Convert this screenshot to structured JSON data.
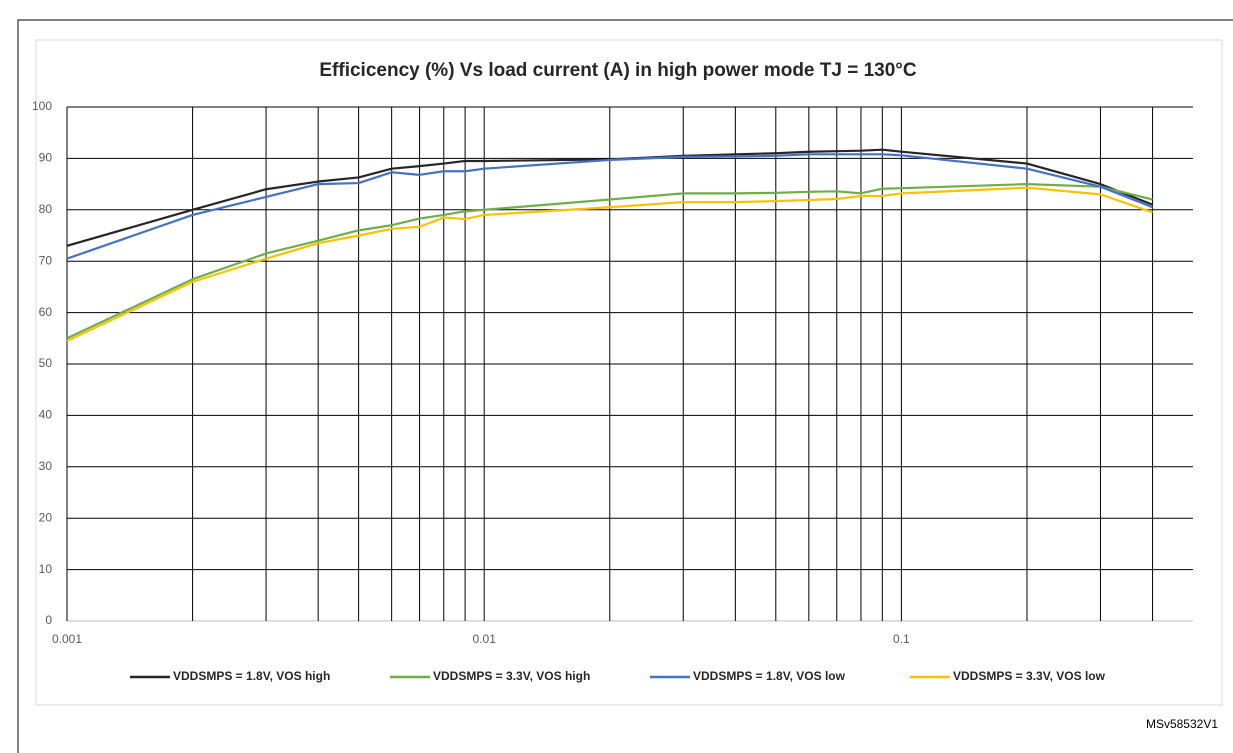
{
  "chart_data": {
    "type": "line",
    "title": "Efficicency (%) Vs load current (A) in high power mode TJ = 130°C",
    "footnote": "MSv58532V1",
    "x": [
      0.001,
      0.002,
      0.003,
      0.004,
      0.005,
      0.006,
      0.007,
      0.008,
      0.009,
      0.01,
      0.02,
      0.03,
      0.04,
      0.05,
      0.06,
      0.07,
      0.08,
      0.09,
      0.1,
      0.2,
      0.3,
      0.4
    ],
    "series": [
      {
        "name": "VDDSMPS = 1.8V, VOS high",
        "color": "#262626",
        "values": [
          73,
          80,
          84,
          85.5,
          86.3,
          88,
          88.5,
          89,
          89.5,
          89.5,
          89.8,
          90.5,
          90.8,
          91,
          91.3,
          91.4,
          91.5,
          91.7,
          91.3,
          89,
          85,
          81
        ]
      },
      {
        "name": "VDDSMPS = 3.3V, VOS high",
        "color": "#70ad47",
        "values": [
          55,
          66.5,
          71.5,
          74,
          76,
          77,
          78.3,
          79,
          79.7,
          80,
          82,
          83.2,
          83.2,
          83.3,
          83.5,
          83.6,
          83.2,
          84.1,
          84.2,
          85,
          84.5,
          82
        ]
      },
      {
        "name": "VDDSMPS = 1.8V, VOS low",
        "color": "#4472c4",
        "values": [
          70.5,
          79,
          82.5,
          85,
          85.2,
          87.3,
          86.8,
          87.5,
          87.5,
          88,
          89.7,
          90.3,
          90.4,
          90.5,
          90.8,
          90.8,
          90.8,
          90.8,
          90.6,
          88,
          84.5,
          80.5
        ]
      },
      {
        "name": "VDDSMPS = 3.3V, VOS low",
        "color": "#ffc000",
        "values": [
          54.5,
          66,
          70.5,
          73.5,
          75,
          76.3,
          76.7,
          78.5,
          78.2,
          79,
          80.5,
          81.5,
          81.5,
          81.7,
          81.9,
          82.1,
          82.7,
          82.7,
          83.2,
          84.3,
          83,
          79.5
        ]
      }
    ],
    "xlog": true,
    "xlim": [
      0.001,
      0.5
    ],
    "xticks": [
      0.001,
      0.01,
      0.1
    ],
    "xgrid": [
      0.002,
      0.003,
      0.004,
      0.005,
      0.006,
      0.007,
      0.008,
      0.009,
      0.02,
      0.03,
      0.04,
      0.05,
      0.06,
      0.07,
      0.08,
      0.09,
      0.2,
      0.3,
      0.4
    ],
    "ylim": [
      0,
      100
    ],
    "yticks": [
      0,
      10,
      20,
      30,
      40,
      50,
      60,
      70,
      80,
      90,
      100
    ],
    "grid": true,
    "legend": "bottom"
  }
}
